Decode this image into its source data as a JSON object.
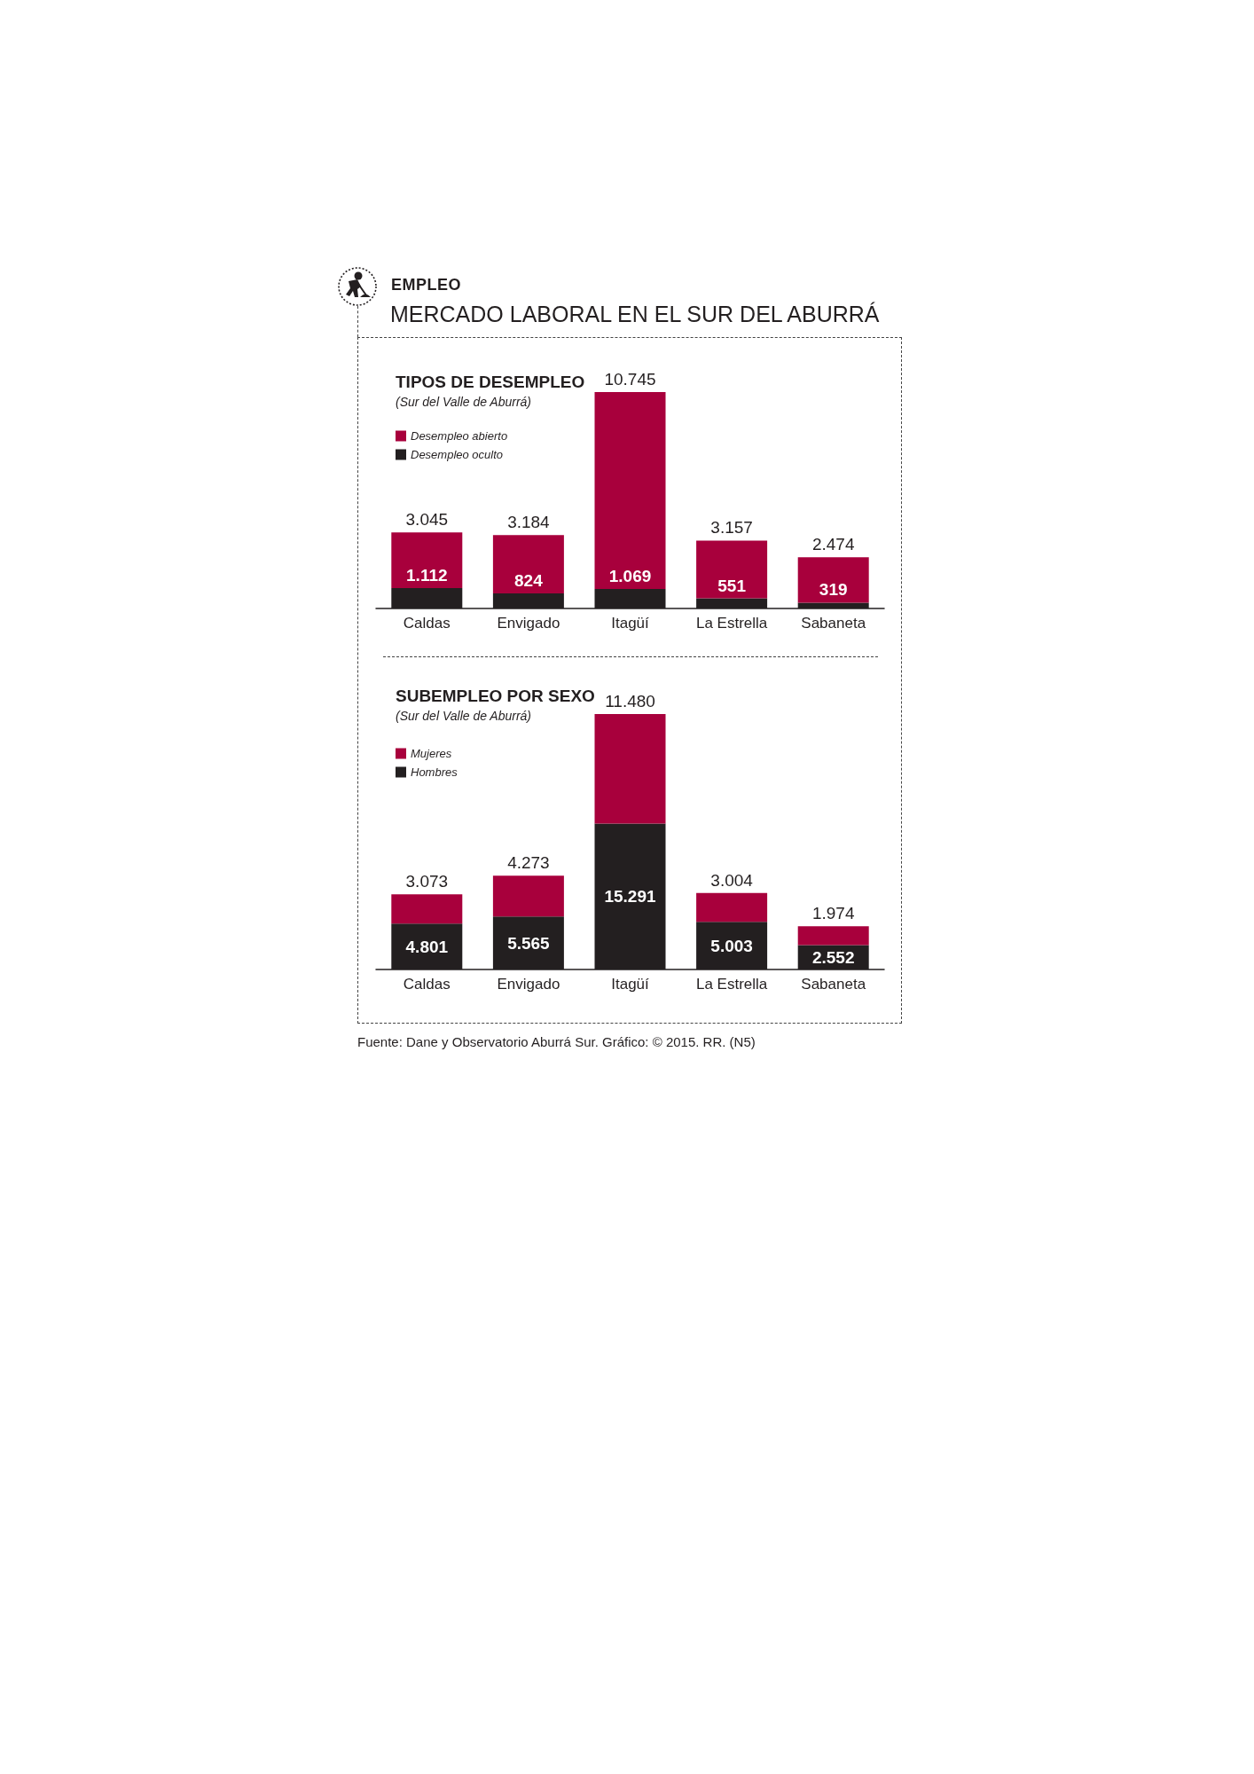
{
  "chart_data": [
    {
      "type": "other",
      "title": "EMPLEO",
      "subtitle": "MERCADO LABORAL EN EL SUR DEL ABURRÁ",
      "annotations": [
        "Fuente: Dane y Observatorio Aburrá Sur. Gráfico: © 2015. RR. (N5)"
      ]
    },
    {
      "type": "bar",
      "title": "TIPOS DE DESEMPLEO",
      "subtitle": "(Sur del Valle de Aburrá)",
      "categories": [
        "Caldas",
        "Envigado",
        "Itagüí",
        "La Estrella",
        "Sabaneta"
      ],
      "stacked": true,
      "legend": "top left",
      "tick_labels": "x",
      "series": [
        {
          "name": "Desempleo oculto",
          "color": "#231f20",
          "values": [
            1112,
            824,
            1069,
            551,
            319
          ],
          "value_labels": [
            "1.112",
            "824",
            "1.069",
            "551",
            "319"
          ]
        },
        {
          "name": "Desempleo abierto",
          "color": "#a8003c",
          "values": [
            3045,
            3184,
            10745,
            3157,
            2474
          ],
          "value_labels": [
            "3.045",
            "3.184",
            "10.745",
            "3.157",
            "2.474"
          ]
        }
      ]
    },
    {
      "type": "bar",
      "title": "SUBEMPLEO POR SEXO",
      "subtitle": "(Sur del Valle de Aburrá)",
      "categories": [
        "Caldas",
        "Envigado",
        "Itagüí",
        "La Estrella",
        "Sabaneta"
      ],
      "stacked": true,
      "legend": "top left",
      "tick_labels": "x",
      "series": [
        {
          "name": "Hombres",
          "color": "#231f20",
          "values": [
            4801,
            5565,
            15291,
            5003,
            2552
          ],
          "value_labels": [
            "4.801",
            "5.565",
            "15.291",
            "5.003",
            "2.552"
          ]
        },
        {
          "name": "Mujeres",
          "color": "#a8003c",
          "values": [
            3073,
            4273,
            11480,
            3004,
            1974
          ],
          "value_labels": [
            "3.073",
            "4.273",
            "11.480",
            "3.004",
            "1.974"
          ]
        }
      ]
    }
  ]
}
